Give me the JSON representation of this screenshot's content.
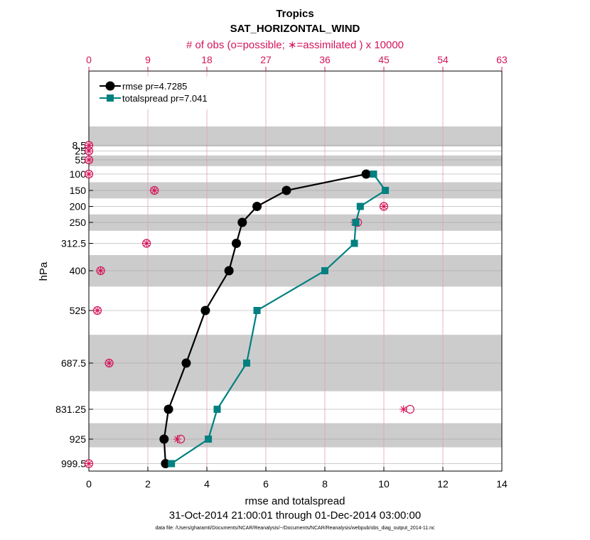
{
  "chart_data": {
    "type": "line",
    "title": "Tropics",
    "subtitle": "SAT_HORIZONTAL_WIND",
    "top_axis_label": "# of obs (o=possible; ∗=assimilated ) x 10000",
    "xlabel": "rmse and totalspread",
    "ylabel": "hPa",
    "date_range": "31-Oct-2014 21:00:01 through 01-Dec-2014 03:00:00",
    "data_file": "data file: /Users/gharamti/Documents/NCAR/Reanalysis/~/Documents/NCAR/Reanalysis/webpub/obs_diag_output_2014-11.nc",
    "xlim": [
      0,
      14
    ],
    "x_ticks": [
      0,
      2,
      4,
      6,
      8,
      10,
      12,
      14
    ],
    "top_xlim": [
      0,
      63
    ],
    "top_ticks": [
      0,
      9,
      18,
      27,
      36,
      45,
      54,
      63
    ],
    "y_ticks": [
      "8.5",
      "25",
      "55",
      "100",
      "150",
      "200",
      "250",
      "312.5",
      "400",
      "525",
      "687.5",
      "831.25",
      "925",
      "999.5"
    ],
    "y_levels": [
      8.5,
      25,
      55,
      100,
      150,
      200,
      250,
      312.5,
      400,
      525,
      687.5,
      831.25,
      925,
      999.5
    ],
    "shaded_bands_hPa": [
      [
        5,
        12
      ],
      [
        40,
        75
      ],
      [
        125,
        175
      ],
      [
        225,
        275
      ],
      [
        350,
        450
      ],
      [
        600,
        775
      ],
      [
        875,
        950
      ]
    ],
    "series": [
      {
        "name": "rmse pr=4.7285",
        "color": "#000000",
        "marker": "circle",
        "levels": [
          100,
          150,
          200,
          250,
          312.5,
          400,
          525,
          687.5,
          831.25,
          925,
          999.5
        ],
        "values": [
          9.4,
          6.7,
          5.7,
          5.2,
          5.0,
          4.75,
          3.95,
          3.3,
          2.7,
          2.55,
          2.6
        ]
      },
      {
        "name": "totalspread pr=7.041",
        "color": "#008080",
        "marker": "square",
        "levels": [
          100,
          150,
          200,
          250,
          312.5,
          400,
          525,
          687.5,
          831.25,
          925,
          999.5
        ],
        "values": [
          9.65,
          10.05,
          9.2,
          9.05,
          9.0,
          8.0,
          5.7,
          5.35,
          4.35,
          4.05,
          2.8
        ]
      }
    ],
    "obs_counts_x10000": {
      "color": "#d4145a",
      "levels": [
        8.5,
        25,
        55,
        100,
        150,
        200,
        250,
        312.5,
        400,
        525,
        687.5,
        831.25,
        925,
        999.5
      ],
      "possible": [
        0.0,
        0.0,
        0.0,
        0.0,
        10.0,
        45.0,
        41.0,
        8.8,
        1.8,
        1.3,
        3.1,
        49.0,
        14.0,
        0.0
      ],
      "assimilated": [
        0.0,
        0.0,
        0.0,
        0.0,
        10.0,
        45.0,
        40.5,
        8.8,
        1.8,
        1.3,
        3.1,
        48.0,
        13.5,
        0.0
      ]
    }
  }
}
